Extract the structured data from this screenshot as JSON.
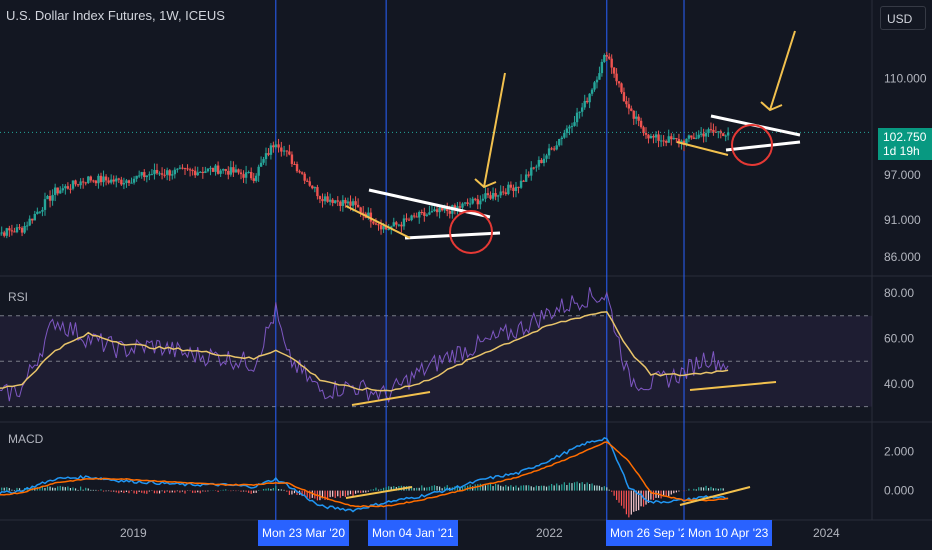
{
  "header": {
    "title": "U.S. Dollar Index Futures, 1W, ICEUS",
    "currency": "USD"
  },
  "last_price": {
    "value": "102.750",
    "countdown": "1d 19h"
  },
  "panes": {
    "rsi_label": "RSI",
    "macd_label": "MACD"
  },
  "x_axis": {
    "ticks": [
      "2019",
      "2022",
      "2024"
    ],
    "markers": [
      "Mon 23 Mar '20",
      "Mon 04 Jan '21",
      "Mon 26 Sep '2",
      "Mon 10 Apr '23"
    ]
  },
  "colors": {
    "background": "#131722",
    "up": "#26a69a",
    "down": "#ef5350",
    "marker": "#2962ff",
    "rsi": "#7e57c2",
    "rsi_ma": "#e8c46a",
    "macd": "#2196f3",
    "signal": "#ff6d00",
    "annotation_white": "#ffffff",
    "annotation_yellow": "#f2c14e",
    "annotation_red": "#e53935"
  },
  "chart_data": [
    {
      "type": "candlestick",
      "title": "U.S. Dollar Index Futures, 1W, ICEUS",
      "x": [
        "2018-01",
        "2018-04",
        "2018-07",
        "2018-10",
        "2019-01",
        "2019-04",
        "2019-07",
        "2019-10",
        "2020-01",
        "2020-03",
        "2020-04",
        "2020-07",
        "2020-10",
        "2021-01",
        "2021-04",
        "2021-07",
        "2021-10",
        "2022-01",
        "2022-04",
        "2022-07",
        "2022-09",
        "2022-11",
        "2023-01",
        "2023-04",
        "2023-06",
        "2023-08"
      ],
      "y": [
        89.0,
        89.8,
        94.8,
        96.5,
        96.2,
        97.3,
        97.5,
        97.8,
        96.8,
        101.7,
        99.8,
        94.2,
        93.0,
        89.8,
        91.5,
        92.4,
        94.0,
        95.7,
        100.5,
        106.5,
        113.5,
        105.5,
        102.0,
        101.5,
        102.8,
        102.75
      ],
      "yticks": [
        "86.000",
        "91.000",
        "97.000",
        "110.000"
      ],
      "ylim": [
        84,
        120
      ],
      "last_value": 102.75
    },
    {
      "type": "line",
      "title": "RSI",
      "x": [
        "2018-01",
        "2018-04",
        "2018-07",
        "2018-10",
        "2019-01",
        "2019-04",
        "2019-07",
        "2019-10",
        "2020-01",
        "2020-03",
        "2020-04",
        "2020-07",
        "2020-10",
        "2021-01",
        "2021-04",
        "2021-07",
        "2021-10",
        "2022-01",
        "2022-04",
        "2022-07",
        "2022-09",
        "2022-11",
        "2023-01",
        "2023-04",
        "2023-06",
        "2023-08"
      ],
      "series": [
        {
          "values": [
            33,
            38,
            68,
            60,
            55,
            57,
            53,
            52,
            49,
            72,
            52,
            37,
            39,
            35,
            45,
            53,
            58,
            64,
            72,
            78,
            79,
            42,
            40,
            45,
            52,
            48
          ]
        },
        {
          "values": [
            37,
            40,
            55,
            62,
            58,
            56,
            55,
            53,
            51,
            55,
            53,
            42,
            38,
            37,
            40,
            47,
            54,
            60,
            66,
            70,
            72,
            55,
            44,
            44,
            45,
            46
          ]
        }
      ],
      "yticks": [
        "40.00",
        "60.00",
        "80.00"
      ],
      "ylim": [
        25,
        84
      ],
      "bands": [
        30,
        50,
        70
      ]
    },
    {
      "type": "line",
      "title": "MACD",
      "x": [
        "2018-01",
        "2018-04",
        "2018-07",
        "2018-10",
        "2019-01",
        "2019-04",
        "2019-07",
        "2019-10",
        "2020-01",
        "2020-03",
        "2020-04",
        "2020-07",
        "2020-10",
        "2021-01",
        "2021-04",
        "2021-07",
        "2021-10",
        "2022-01",
        "2022-04",
        "2022-07",
        "2022-09",
        "2022-11",
        "2023-01",
        "2023-04",
        "2023-06",
        "2023-08"
      ],
      "series": [
        {
          "values": [
            -0.2,
            0.0,
            0.6,
            0.7,
            0.5,
            0.4,
            0.3,
            0.3,
            0.2,
            0.6,
            0.3,
            -0.8,
            -1.0,
            -0.6,
            -0.3,
            0.1,
            0.6,
            0.9,
            1.6,
            2.4,
            2.7,
            0.2,
            -0.6,
            -0.5,
            -0.3,
            -0.4
          ]
        },
        {
          "values": [
            -0.3,
            -0.1,
            0.4,
            0.6,
            0.6,
            0.5,
            0.4,
            0.3,
            0.3,
            0.4,
            0.4,
            -0.3,
            -0.8,
            -0.8,
            -0.5,
            -0.1,
            0.3,
            0.7,
            1.3,
            2.0,
            2.5,
            1.5,
            -0.1,
            -0.5,
            -0.5,
            -0.4
          ]
        }
      ],
      "yticks": [
        "0.000",
        "2.000"
      ],
      "ylim": [
        -1.3,
        3.1
      ]
    }
  ]
}
